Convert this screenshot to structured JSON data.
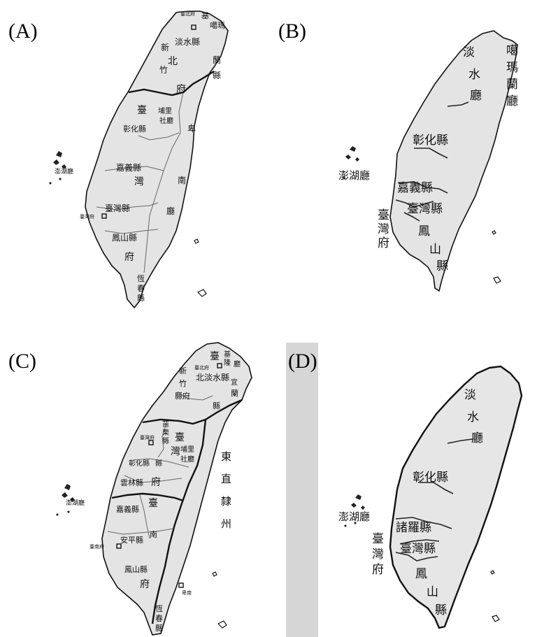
{
  "panels": [
    {
      "id": "A",
      "label": "(A)",
      "places": [
        "臺北府",
        "基",
        "噶瑪",
        "淡水縣",
        "新",
        "北",
        "竹",
        "蘭",
        "縣",
        "府",
        "臺",
        "埔里",
        "社廳",
        "卑",
        "彰化縣",
        "南",
        "嘉義縣",
        "灣",
        "臺灣縣",
        "臺灣府",
        "廳",
        "鳳山縣",
        "府",
        "恆",
        "春",
        "縣",
        "澎湖廳"
      ]
    },
    {
      "id": "B",
      "label": "(B)",
      "places": [
        "淡",
        "水",
        "廳",
        "噶",
        "瑪",
        "蘭",
        "廳",
        "彰化縣",
        "嘉義縣",
        "澎湖廳",
        "臺",
        "灣",
        "府",
        "臺灣縣",
        "鳳",
        "山",
        "縣"
      ]
    },
    {
      "id": "C",
      "label": "(C)",
      "places": [
        "臺",
        "臺北府",
        "基",
        "隆",
        "廳",
        "新",
        "北淡水縣",
        "竹",
        "縣府",
        "宜",
        "蘭",
        "縣",
        "苗",
        "栗",
        "縣",
        "臺",
        "臺灣府",
        "灣",
        "埔里",
        "社廳",
        "彰化縣",
        "縣",
        "雲林縣",
        "府",
        "東",
        "直",
        "隸",
        "州",
        "嘉義縣",
        "臺",
        "南",
        "安平縣",
        "臺南府",
        "鳳山縣",
        "府",
        "卑南",
        "恆",
        "春",
        "縣",
        "澎湖廳"
      ]
    },
    {
      "id": "D",
      "label": "(D)",
      "places": [
        "淡",
        "水",
        "廳",
        "彰化縣",
        "諸羅縣",
        "澎湖廳",
        "臺",
        "灣",
        "府",
        "臺灣縣",
        "鳳",
        "山",
        "縣"
      ]
    }
  ]
}
